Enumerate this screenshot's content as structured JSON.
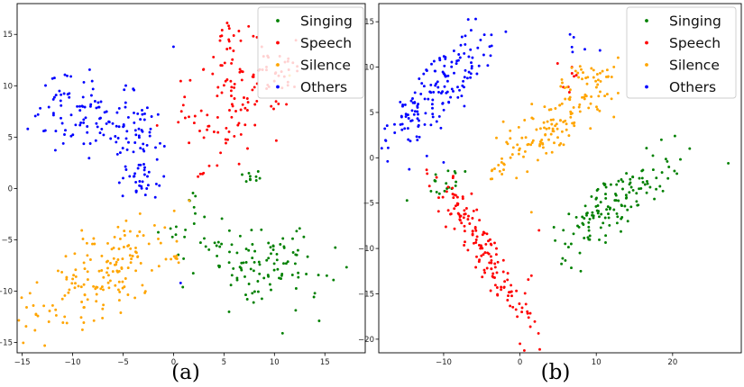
{
  "chart_data": [
    {
      "type": "scatter",
      "panel_label": "(a)",
      "xlabel": "",
      "ylabel": "",
      "xlim": [
        -15.5,
        19
      ],
      "ylim": [
        -16,
        18
      ],
      "xticks": [
        -15,
        -10,
        -5,
        0,
        5,
        10,
        15
      ],
      "yticks": [
        -15,
        -10,
        -5,
        0,
        5,
        10,
        15
      ],
      "grid": false,
      "legend_position": "top-right",
      "series": [
        {
          "name": "Singing",
          "color": "#008000",
          "clusters": [
            {
              "cx": 8.5,
              "cy": -7,
              "sx": 4.0,
              "sy": 1.8,
              "n": 120,
              "angle": -12
            },
            {
              "cx": 7.8,
              "cy": 1.0,
              "sx": 0.6,
              "sy": 0.45,
              "n": 10,
              "angle": 0
            },
            {
              "cx": 1.8,
              "cy": -1.5,
              "sx": 0.3,
              "sy": 0.6,
              "n": 5,
              "angle": 0
            }
          ],
          "outliers": [
            [
              10.8,
              -14.1
            ],
            [
              5.5,
              -12
            ],
            [
              14,
              -10.2
            ]
          ]
        },
        {
          "name": "Speech",
          "color": "#ff0000",
          "clusters": [
            {
              "cx": 5.8,
              "cy": 8.5,
              "sx": 2.3,
              "sy": 3.3,
              "n": 115,
              "angle": -40
            },
            {
              "cx": 6.0,
              "cy": 15.3,
              "sx": 0.9,
              "sy": 0.9,
              "n": 15,
              "angle": 0
            },
            {
              "cx": 11,
              "cy": 11.5,
              "sx": 0.9,
              "sy": 0.7,
              "n": 10,
              "angle": 0
            },
            {
              "cx": 2.6,
              "cy": 1.3,
              "sx": 0.25,
              "sy": 0.2,
              "n": 4,
              "angle": 0
            }
          ],
          "outliers": []
        },
        {
          "name": "Silence",
          "color": "#ffa500",
          "clusters": [
            {
              "cx": -7.5,
              "cy": -8.5,
              "sx": 4.2,
              "sy": 2.0,
              "n": 160,
              "angle": 32
            },
            {
              "cx": 0.1,
              "cy": -7,
              "sx": 0.35,
              "sy": 0.35,
              "n": 6,
              "angle": 0
            }
          ],
          "outliers": [
            [
              10.2,
              12
            ],
            [
              11.5,
              11
            ]
          ]
        },
        {
          "name": "Others",
          "color": "#0000ff",
          "clusters": [
            {
              "cx": -8.5,
              "cy": 6.8,
              "sx": 3.3,
              "sy": 1.9,
              "n": 110,
              "angle": -12
            },
            {
              "cx": -3.3,
              "cy": 1.0,
              "sx": 1.0,
              "sy": 1.3,
              "n": 35,
              "angle": 0
            },
            {
              "cx": -3.5,
              "cy": 5.5,
              "sx": 1.3,
              "sy": 1.0,
              "n": 25,
              "angle": 0
            }
          ],
          "outliers": [
            [
              0,
              13.8
            ],
            [
              0.7,
              -9.2
            ],
            [
              -12,
              10.7
            ],
            [
              -4,
              9.7
            ]
          ]
        }
      ],
      "legend": [
        "Singing",
        "Speech",
        "Silence",
        "Others"
      ]
    },
    {
      "type": "scatter",
      "panel_label": "(b)",
      "xlabel": "",
      "ylabel": "",
      "xlim": [
        -18.5,
        29
      ],
      "ylim": [
        -21.5,
        17
      ],
      "xticks": [
        -10,
        0,
        10,
        20
      ],
      "yticks": [
        -20,
        -15,
        -10,
        -5,
        0,
        5,
        10,
        15
      ],
      "grid": false,
      "legend_position": "top-right",
      "series": [
        {
          "name": "Singing",
          "color": "#008000",
          "clusters": [
            {
              "cx": 12.5,
              "cy": -5,
              "sx": 4.3,
              "sy": 1.4,
              "n": 140,
              "angle": 35
            },
            {
              "cx": -9.5,
              "cy": -3,
              "sx": 1.5,
              "sy": 0.8,
              "n": 18,
              "angle": 0
            }
          ],
          "outliers": [
            [
              27.3,
              -0.6
            ],
            [
              20.3,
              2.4
            ],
            [
              -14.8,
              -4.7
            ]
          ]
        },
        {
          "name": "Speech",
          "color": "#ff0000",
          "clusters": [
            {
              "cx": -4.5,
              "cy": -10.5,
              "sx": 5.3,
              "sy": 1.1,
              "n": 150,
              "angle": -52
            },
            {
              "cx": 6.5,
              "cy": 8.5,
              "sx": 0.7,
              "sy": 1.3,
              "n": 8,
              "angle": 0
            }
          ],
          "outliers": [
            [
              0,
              -20.5
            ],
            [
              1.5,
              -13
            ],
            [
              2.5,
              -8
            ]
          ]
        },
        {
          "name": "Silence",
          "color": "#ffa500",
          "clusters": [
            {
              "cx": 4.5,
              "cy": 4.0,
              "sx": 3.8,
              "sy": 1.5,
              "n": 120,
              "angle": 35
            },
            {
              "cx": 10.0,
              "cy": 8.0,
              "sx": 1.5,
              "sy": 1.8,
              "n": 30,
              "angle": 0
            },
            {
              "cx": -2.5,
              "cy": -1.5,
              "sx": 0.8,
              "sy": 0.6,
              "n": 10,
              "angle": 0
            }
          ],
          "outliers": [
            [
              12,
              6.5
            ],
            [
              12.3,
              4.5
            ],
            [
              1.5,
              -6
            ]
          ]
        },
        {
          "name": "Others",
          "color": "#0000ff",
          "clusters": [
            {
              "cx": -10.5,
              "cy": 7.5,
              "sx": 5.0,
              "sy": 1.4,
              "n": 160,
              "angle": 42
            },
            {
              "cx": 7.5,
              "cy": 12.2,
              "sx": 1.2,
              "sy": 0.6,
              "n": 6,
              "angle": 0
            }
          ],
          "outliers": [
            [
              -12.2,
              0.2
            ],
            [
              -15.5,
              4.5
            ],
            [
              -10,
              -0.5
            ],
            [
              -5.8,
              15.3
            ]
          ]
        }
      ],
      "legend": [
        "Singing",
        "Speech",
        "Silence",
        "Others"
      ]
    }
  ]
}
